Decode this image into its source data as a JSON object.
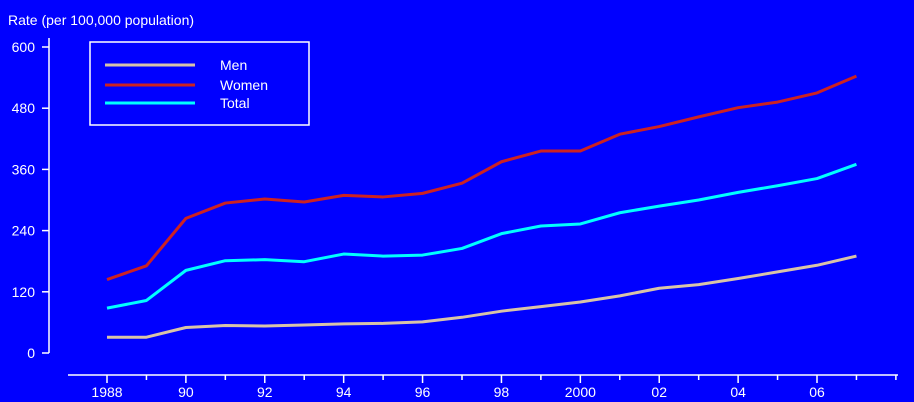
{
  "chart_data": {
    "type": "line",
    "title": "",
    "ylabel": "Rate (per 100,000 population)",
    "xlabel": "",
    "ylim": [
      0,
      600
    ],
    "xlim": [
      1987,
      2009
    ],
    "y_ticks": [
      0,
      120,
      240,
      360,
      480,
      600
    ],
    "x_ticks": [
      {
        "value": 1988,
        "label": "1988"
      },
      {
        "value": 1990,
        "label": "90"
      },
      {
        "value": 1992,
        "label": "92"
      },
      {
        "value": 1994,
        "label": "94"
      },
      {
        "value": 1996,
        "label": "96"
      },
      {
        "value": 1998,
        "label": "98"
      },
      {
        "value": 2000,
        "label": "2000"
      },
      {
        "value": 2002,
        "label": "02"
      },
      {
        "value": 2004,
        "label": "04"
      },
      {
        "value": 2006,
        "label": "06"
      }
    ],
    "x": [
      1988,
      1989,
      1990,
      1991,
      1992,
      1993,
      1994,
      1995,
      1996,
      1997,
      1998,
      1999,
      2000,
      2001,
      2002,
      2003,
      2004,
      2005,
      2006,
      2007
    ],
    "series": [
      {
        "name": "Men",
        "color": "#d8c3a8",
        "values": [
          31,
          31,
          50,
          54,
          53,
          55,
          57,
          58,
          61,
          70,
          82,
          91,
          100,
          112,
          127,
          134,
          146,
          159,
          172,
          190
        ]
      },
      {
        "name": "Women",
        "color": "#cc2222",
        "values": [
          144,
          171,
          264,
          294,
          302,
          296,
          309,
          306,
          313,
          333,
          375,
          396,
          396,
          429,
          444,
          463,
          481,
          492,
          510,
          543
        ]
      },
      {
        "name": "Total",
        "color": "#00ffff",
        "values": [
          88,
          103,
          162,
          181,
          183,
          179,
          194,
          190,
          192,
          205,
          234,
          249,
          253,
          275,
          288,
          300,
          315,
          328,
          342,
          370
        ]
      }
    ],
    "grid": false,
    "legend_position": "top-left"
  }
}
